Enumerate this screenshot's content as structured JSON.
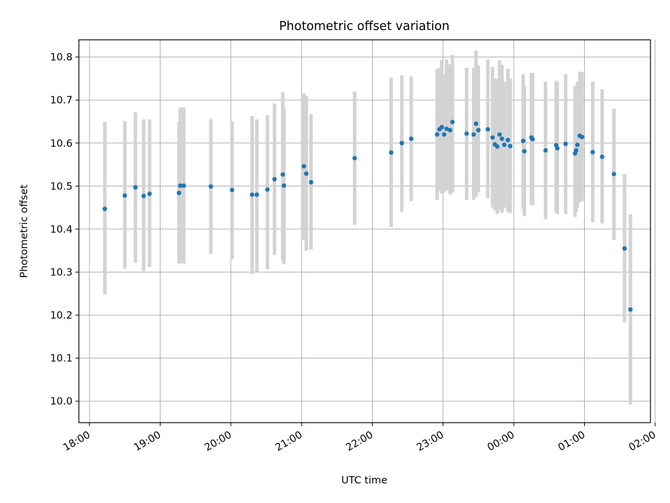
{
  "chart_data": {
    "type": "scatter",
    "title": "Photometric offset variation",
    "xlabel": "UTC time",
    "ylabel": "Photometric offset",
    "x_ticks": [
      "18:00",
      "19:00",
      "20:00",
      "21:00",
      "22:00",
      "23:00",
      "00:00",
      "01:00",
      "02:00"
    ],
    "y_ticks": [
      "10.0",
      "10.1",
      "10.2",
      "10.3",
      "10.4",
      "10.5",
      "10.6",
      "10.7",
      "10.8"
    ],
    "xlim": [
      "17:51",
      "01:56"
    ],
    "ylim": [
      9.95,
      10.84
    ],
    "grid": true,
    "colors": {
      "point": "#1f77b4",
      "errorbar": "#d3d3d3",
      "grid": "#b0b0b0"
    },
    "series": [
      {
        "x": [
          "18:13",
          "18:30",
          "18:39",
          "18:46",
          "18:51",
          "19:16",
          "19:17",
          "19:20",
          "19:43",
          "20:01",
          "20:18",
          "20:22",
          "20:31",
          "20:37",
          "20:44",
          "20:45",
          "21:02",
          "21:04",
          "21:08",
          "21:45",
          "22:16",
          "22:25",
          "22:33",
          "22:55",
          "22:57",
          "22:59",
          "23:01",
          "23:03",
          "23:06",
          "23:08",
          "23:20",
          "23:26",
          "23:28",
          "23:30",
          "23:38",
          "23:42",
          "23:44",
          "23:46",
          "23:48",
          "23:50",
          "23:52",
          "23:55",
          "23:57",
          "00:08",
          "00:09",
          "00:15",
          "00:16",
          "00:27",
          "00:36",
          "00:37",
          "00:44",
          "00:52",
          "00:53",
          "00:54",
          "00:56",
          "00:58",
          "01:07",
          "01:15",
          "01:25",
          "01:34",
          "01:39"
        ],
        "y": [
          10.447,
          10.478,
          10.497,
          10.477,
          10.482,
          10.484,
          10.501,
          10.501,
          10.499,
          10.491,
          10.48,
          10.48,
          10.492,
          10.516,
          10.527,
          10.501,
          10.546,
          10.529,
          10.509,
          10.565,
          10.578,
          10.6,
          10.61,
          10.62,
          10.632,
          10.637,
          10.62,
          10.633,
          10.63,
          10.649,
          10.622,
          10.62,
          10.645,
          10.63,
          10.632,
          10.613,
          10.597,
          10.592,
          10.62,
          10.61,
          10.596,
          10.607,
          10.593,
          10.605,
          10.581,
          10.613,
          10.609,
          10.583,
          10.595,
          10.588,
          10.598,
          10.576,
          10.583,
          10.596,
          10.617,
          10.614,
          10.579,
          10.568,
          10.528,
          10.355,
          10.213
        ],
        "yerr_low": [
          10.248,
          10.308,
          10.322,
          10.302,
          10.312,
          10.32,
          10.32,
          10.32,
          10.342,
          10.33,
          10.295,
          10.3,
          10.307,
          10.34,
          10.327,
          10.318,
          10.375,
          10.35,
          10.352,
          10.41,
          10.405,
          10.44,
          10.465,
          10.468,
          10.488,
          10.482,
          10.485,
          10.49,
          10.48,
          10.485,
          10.468,
          10.468,
          10.475,
          10.485,
          10.472,
          10.45,
          10.444,
          10.435,
          10.445,
          10.438,
          10.45,
          10.44,
          10.437,
          10.447,
          10.43,
          10.458,
          10.455,
          10.423,
          10.44,
          10.435,
          10.435,
          10.428,
          10.44,
          10.45,
          10.462,
          10.465,
          10.416,
          10.413,
          10.375,
          10.183,
          9.992
        ],
        "yerr_high": [
          10.649,
          10.651,
          10.672,
          10.655,
          10.655,
          10.65,
          10.683,
          10.683,
          10.656,
          10.65,
          10.663,
          10.655,
          10.665,
          10.692,
          10.718,
          10.683,
          10.715,
          10.71,
          10.667,
          10.72,
          10.752,
          10.758,
          10.755,
          10.772,
          10.775,
          10.793,
          10.76,
          10.795,
          10.783,
          10.805,
          10.775,
          10.775,
          10.815,
          10.78,
          10.795,
          10.777,
          10.75,
          10.748,
          10.792,
          10.782,
          10.742,
          10.773,
          10.75,
          10.76,
          10.733,
          10.762,
          10.763,
          10.743,
          10.745,
          10.741,
          10.76,
          10.733,
          10.727,
          10.742,
          10.766,
          10.765,
          10.743,
          10.725,
          10.68,
          10.528,
          10.434
        ]
      }
    ]
  }
}
